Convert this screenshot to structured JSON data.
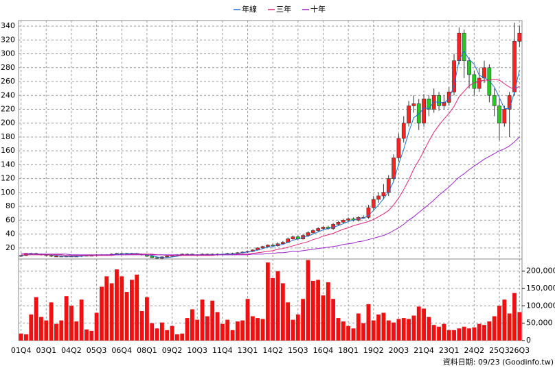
{
  "chart_data": {
    "type": "candlestick",
    "legend": [
      "年線",
      "三年",
      "十年"
    ],
    "categories": [
      "01Q4",
      null,
      null,
      null,
      null,
      "03Q1",
      null,
      null,
      null,
      null,
      "04Q2",
      null,
      null,
      null,
      null,
      "05Q3",
      null,
      null,
      null,
      null,
      "06Q4",
      null,
      null,
      null,
      null,
      "08Q1",
      null,
      null,
      null,
      null,
      "09Q2",
      null,
      null,
      null,
      null,
      "10Q3",
      null,
      null,
      null,
      null,
      "11Q4",
      null,
      null,
      null,
      null,
      "13Q1",
      null,
      null,
      null,
      null,
      "14Q2",
      null,
      null,
      null,
      null,
      "15Q3",
      null,
      null,
      null,
      null,
      "16Q4",
      null,
      null,
      null,
      null,
      "18Q1",
      null,
      null,
      null,
      null,
      "19Q2",
      null,
      null,
      null,
      null,
      "20Q3",
      null,
      null,
      null,
      null,
      "21Q4",
      null,
      null,
      null,
      null,
      "23Q1",
      null,
      null,
      null,
      null,
      "24Q2",
      null,
      null,
      null,
      null,
      "25Q3",
      null,
      null,
      null,
      "26Q3"
    ],
    "open": [
      8,
      9,
      12,
      12,
      11,
      10,
      9,
      8,
      8,
      8,
      8,
      8,
      8,
      9,
      9,
      9,
      10,
      10,
      10,
      11,
      12,
      12,
      12,
      12,
      11,
      10,
      8,
      6,
      5,
      7,
      8,
      9,
      10,
      11,
      11,
      10,
      10,
      11,
      11,
      10,
      11,
      11,
      12,
      12,
      13,
      14,
      15,
      17,
      20,
      22,
      24,
      23,
      26,
      28,
      33,
      36,
      33,
      38,
      42,
      45,
      48,
      50,
      48,
      54,
      57,
      60,
      62,
      60,
      64,
      64,
      78,
      90,
      95,
      100,
      120,
      150,
      178,
      200,
      225,
      228,
      200,
      235,
      220,
      240,
      225,
      230,
      245,
      290,
      330,
      290,
      270,
      250,
      265,
      280,
      240,
      225,
      200,
      220,
      245,
      318
    ],
    "high": [
      10,
      13,
      13,
      13,
      12,
      11,
      10,
      9,
      9,
      9,
      9,
      9,
      10,
      10,
      10,
      11,
      11,
      11,
      12,
      13,
      13,
      13,
      13,
      13,
      12,
      11,
      9,
      7,
      8,
      9,
      10,
      11,
      12,
      12,
      12,
      11,
      12,
      12,
      12,
      12,
      12,
      13,
      13,
      14,
      15,
      16,
      18,
      21,
      23,
      25,
      26,
      28,
      30,
      35,
      38,
      38,
      40,
      44,
      47,
      50,
      52,
      52,
      56,
      59,
      62,
      64,
      64,
      66,
      67,
      82,
      95,
      100,
      112,
      125,
      155,
      185,
      210,
      232,
      240,
      235,
      242,
      240,
      250,
      245,
      240,
      252,
      300,
      338,
      335,
      295,
      275,
      280,
      290,
      285,
      250,
      235,
      225,
      245,
      345,
      340
    ],
    "low": [
      7,
      8,
      11,
      10,
      9,
      8,
      7,
      7,
      7,
      7,
      7,
      7,
      7,
      8,
      8,
      8,
      9,
      9,
      9,
      10,
      11,
      11,
      11,
      10,
      9,
      7,
      5,
      4,
      4,
      6,
      7,
      8,
      9,
      10,
      9,
      9,
      9,
      10,
      9,
      9,
      10,
      10,
      11,
      11,
      12,
      13,
      14,
      16,
      19,
      21,
      22,
      22,
      25,
      27,
      31,
      31,
      32,
      36,
      40,
      43,
      46,
      46,
      46,
      52,
      55,
      58,
      58,
      58,
      62,
      62,
      75,
      85,
      90,
      95,
      115,
      145,
      172,
      195,
      215,
      190,
      195,
      210,
      215,
      218,
      220,
      225,
      240,
      285,
      265,
      250,
      240,
      245,
      258,
      230,
      210,
      175,
      195,
      180,
      240,
      310
    ],
    "close": [
      9,
      12,
      12,
      11,
      10,
      9,
      8,
      8,
      8,
      8,
      8,
      8,
      9,
      9,
      9,
      10,
      10,
      10,
      11,
      12,
      12,
      12,
      12,
      11,
      10,
      8,
      6,
      5,
      7,
      8,
      9,
      10,
      11,
      11,
      10,
      10,
      11,
      11,
      10,
      11,
      11,
      12,
      12,
      13,
      14,
      15,
      17,
      20,
      22,
      24,
      23,
      26,
      28,
      33,
      36,
      33,
      38,
      42,
      45,
      48,
      50,
      48,
      54,
      57,
      60,
      62,
      60,
      64,
      64,
      78,
      90,
      95,
      100,
      120,
      150,
      178,
      200,
      225,
      228,
      200,
      235,
      220,
      240,
      225,
      230,
      245,
      290,
      330,
      290,
      270,
      250,
      265,
      280,
      240,
      225,
      200,
      220,
      240,
      318,
      330
    ],
    "up_color": "#ff2020",
    "down_color": "#22cc22",
    "series": [
      {
        "name": "年線",
        "color": "#1f6fd0",
        "values": [
          9,
          10,
          11,
          11,
          11,
          11,
          10,
          9,
          8,
          8,
          8,
          8,
          8,
          9,
          9,
          9,
          10,
          10,
          10,
          11,
          11,
          12,
          12,
          12,
          11,
          10,
          9,
          7,
          6,
          6,
          7,
          8,
          9,
          10,
          10,
          10,
          10,
          10,
          10,
          10,
          11,
          11,
          11,
          12,
          13,
          14,
          15,
          17,
          19,
          21,
          22,
          24,
          25,
          28,
          31,
          33,
          35,
          37,
          40,
          43,
          46,
          48,
          50,
          52,
          55,
          58,
          60,
          62,
          63,
          67,
          74,
          82,
          91,
          101,
          116,
          141,
          162,
          187,
          208,
          213,
          222,
          221,
          231,
          230,
          229,
          235,
          254,
          291,
          304,
          292,
          285,
          269,
          266,
          261,
          252,
          237,
          221,
          221,
          245,
          277
        ]
      },
      {
        "name": "三年",
        "color": "#e0207a",
        "values": [
          10,
          10,
          10,
          10,
          10,
          10,
          10,
          10,
          10,
          9,
          9,
          9,
          9,
          9,
          9,
          9,
          9,
          9,
          9,
          10,
          10,
          10,
          11,
          11,
          11,
          11,
          11,
          10,
          10,
          9,
          9,
          9,
          9,
          9,
          9,
          9,
          9,
          9,
          9,
          10,
          10,
          10,
          10,
          11,
          11,
          11,
          12,
          13,
          14,
          15,
          16,
          18,
          19,
          21,
          23,
          25,
          27,
          29,
          32,
          34,
          37,
          39,
          41,
          44,
          47,
          49,
          52,
          54,
          56,
          58,
          61,
          65,
          69,
          74,
          82,
          92,
          104,
          118,
          134,
          146,
          160,
          174,
          187,
          197,
          206,
          214,
          224,
          238,
          246,
          254,
          258,
          260,
          262,
          262,
          263,
          262,
          257,
          252,
          249,
          253
        ]
      },
      {
        "name": "十年",
        "color": "#9a20c8",
        "values": [
          12,
          12,
          12,
          11,
          11,
          11,
          11,
          11,
          11,
          11,
          10,
          10,
          10,
          10,
          10,
          10,
          10,
          10,
          10,
          10,
          10,
          10,
          10,
          10,
          10,
          10,
          10,
          10,
          10,
          10,
          10,
          10,
          10,
          10,
          10,
          10,
          10,
          10,
          10,
          10,
          10,
          10,
          10,
          10,
          10,
          10,
          11,
          11,
          11,
          12,
          12,
          13,
          13,
          14,
          15,
          15,
          16,
          17,
          18,
          19,
          20,
          21,
          22,
          23,
          25,
          26,
          27,
          29,
          30,
          32,
          34,
          36,
          38,
          41,
          45,
          49,
          54,
          60,
          65,
          71,
          77,
          83,
          89,
          96,
          102,
          108,
          115,
          122,
          127,
          133,
          138,
          143,
          148,
          152,
          156,
          160,
          163,
          167,
          173,
          180
        ]
      }
    ],
    "ylim": [
      4,
      348
    ],
    "yticks": [
      20,
      40,
      60,
      80,
      100,
      120,
      140,
      160,
      180,
      200,
      220,
      240,
      260,
      280,
      300,
      320,
      340
    ],
    "volume": {
      "color": "#ee1111",
      "values": [
        20000,
        18000,
        75000,
        125000,
        68000,
        58000,
        110000,
        48000,
        58000,
        128000,
        100000,
        55000,
        118000,
        32000,
        28000,
        80000,
        155000,
        185000,
        165000,
        205000,
        185000,
        140000,
        175000,
        190000,
        85000,
        125000,
        50000,
        35000,
        52000,
        30000,
        42000,
        18000,
        20000,
        65000,
        90000,
        60000,
        118000,
        70000,
        115000,
        82000,
        48000,
        60000,
        30000,
        55000,
        58000,
        120000,
        70000,
        65000,
        62000,
        225000,
        180000,
        200000,
        165000,
        110000,
        60000,
        75000,
        120000,
        232000,
        172000,
        175000,
        130000,
        168000,
        120000,
        65000,
        55000,
        42000,
        35000,
        78000,
        50000,
        105000,
        58000,
        75000,
        80000,
        58000,
        52000,
        62000,
        65000,
        62000,
        72000,
        98000,
        92000,
        68000,
        45000,
        40000,
        48000,
        30000,
        30000,
        35000,
        40000,
        35000,
        38000,
        48000,
        45000,
        55000,
        70000,
        100000,
        118000,
        78000,
        137000,
        82000
      ]
    },
    "y2lim": [
      0,
      235000
    ],
    "y2ticks": [
      0,
      {
        "value": 50000,
        "label": "50,000"
      },
      {
        "value": 100000,
        "label": "100,000"
      },
      {
        "value": 150000,
        "label": "150,000"
      },
      {
        "value": 200000,
        "label": "200,000"
      }
    ],
    "grid": true,
    "note": "資料日期: 09/23 (Goodinfo.tw)"
  }
}
